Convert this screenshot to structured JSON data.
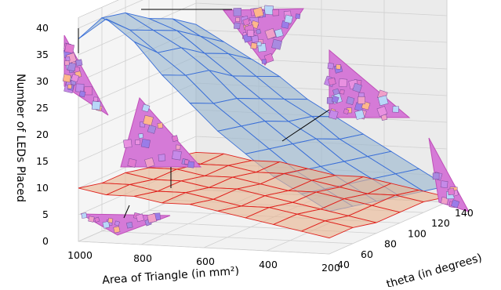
{
  "chart_data": {
    "type": "surface3d",
    "xlabel": "Area of Triangle (in mm²)",
    "ylabel": "theta (in degrees)",
    "zlabel": "Number of LEDs Placed",
    "x_ticks": [
      "1000",
      "800",
      "600",
      "400",
      "200"
    ],
    "y_ticks": [
      "40",
      "60",
      "80",
      "100",
      "120",
      "140"
    ],
    "z_ticks": [
      "0",
      "5",
      "10",
      "15",
      "20",
      "25",
      "30",
      "35",
      "40"
    ],
    "zlim": [
      0,
      42
    ],
    "series": [
      {
        "name": "",
        "color": "#3a6fd8",
        "fill": "#9ab6cf",
        "values_by_theta_from_40": [
          [
            38,
            42,
            38,
            32,
            27,
            22,
            18,
            14,
            11,
            8
          ],
          [
            40,
            38,
            34,
            30,
            25,
            21,
            17,
            13,
            10,
            7
          ],
          [
            39,
            36,
            33,
            29,
            24,
            20,
            16,
            12,
            9,
            6
          ],
          [
            36,
            34,
            30,
            26,
            22,
            18,
            15,
            11,
            8,
            5
          ],
          [
            34,
            31,
            28,
            24,
            20,
            17,
            13,
            10,
            7,
            4
          ],
          [
            31,
            28,
            25,
            22,
            18,
            15,
            12,
            9,
            6,
            3
          ]
        ]
      },
      {
        "name": "",
        "color": "#e0201c",
        "fill": "#e8b592",
        "values_by_theta_from_40": [
          [
            10,
            9,
            9,
            8,
            8,
            7,
            6,
            5,
            4,
            3
          ],
          [
            9,
            9,
            8,
            8,
            7,
            6,
            6,
            5,
            4,
            3
          ],
          [
            9,
            8,
            8,
            7,
            7,
            6,
            5,
            4,
            3,
            2
          ],
          [
            8,
            8,
            7,
            7,
            6,
            5,
            5,
            4,
            3,
            2
          ],
          [
            8,
            7,
            7,
            6,
            6,
            5,
            4,
            3,
            3,
            2
          ],
          [
            7,
            7,
            6,
            6,
            5,
            4,
            4,
            3,
            2,
            1
          ]
        ]
      }
    ],
    "grid": true
  }
}
